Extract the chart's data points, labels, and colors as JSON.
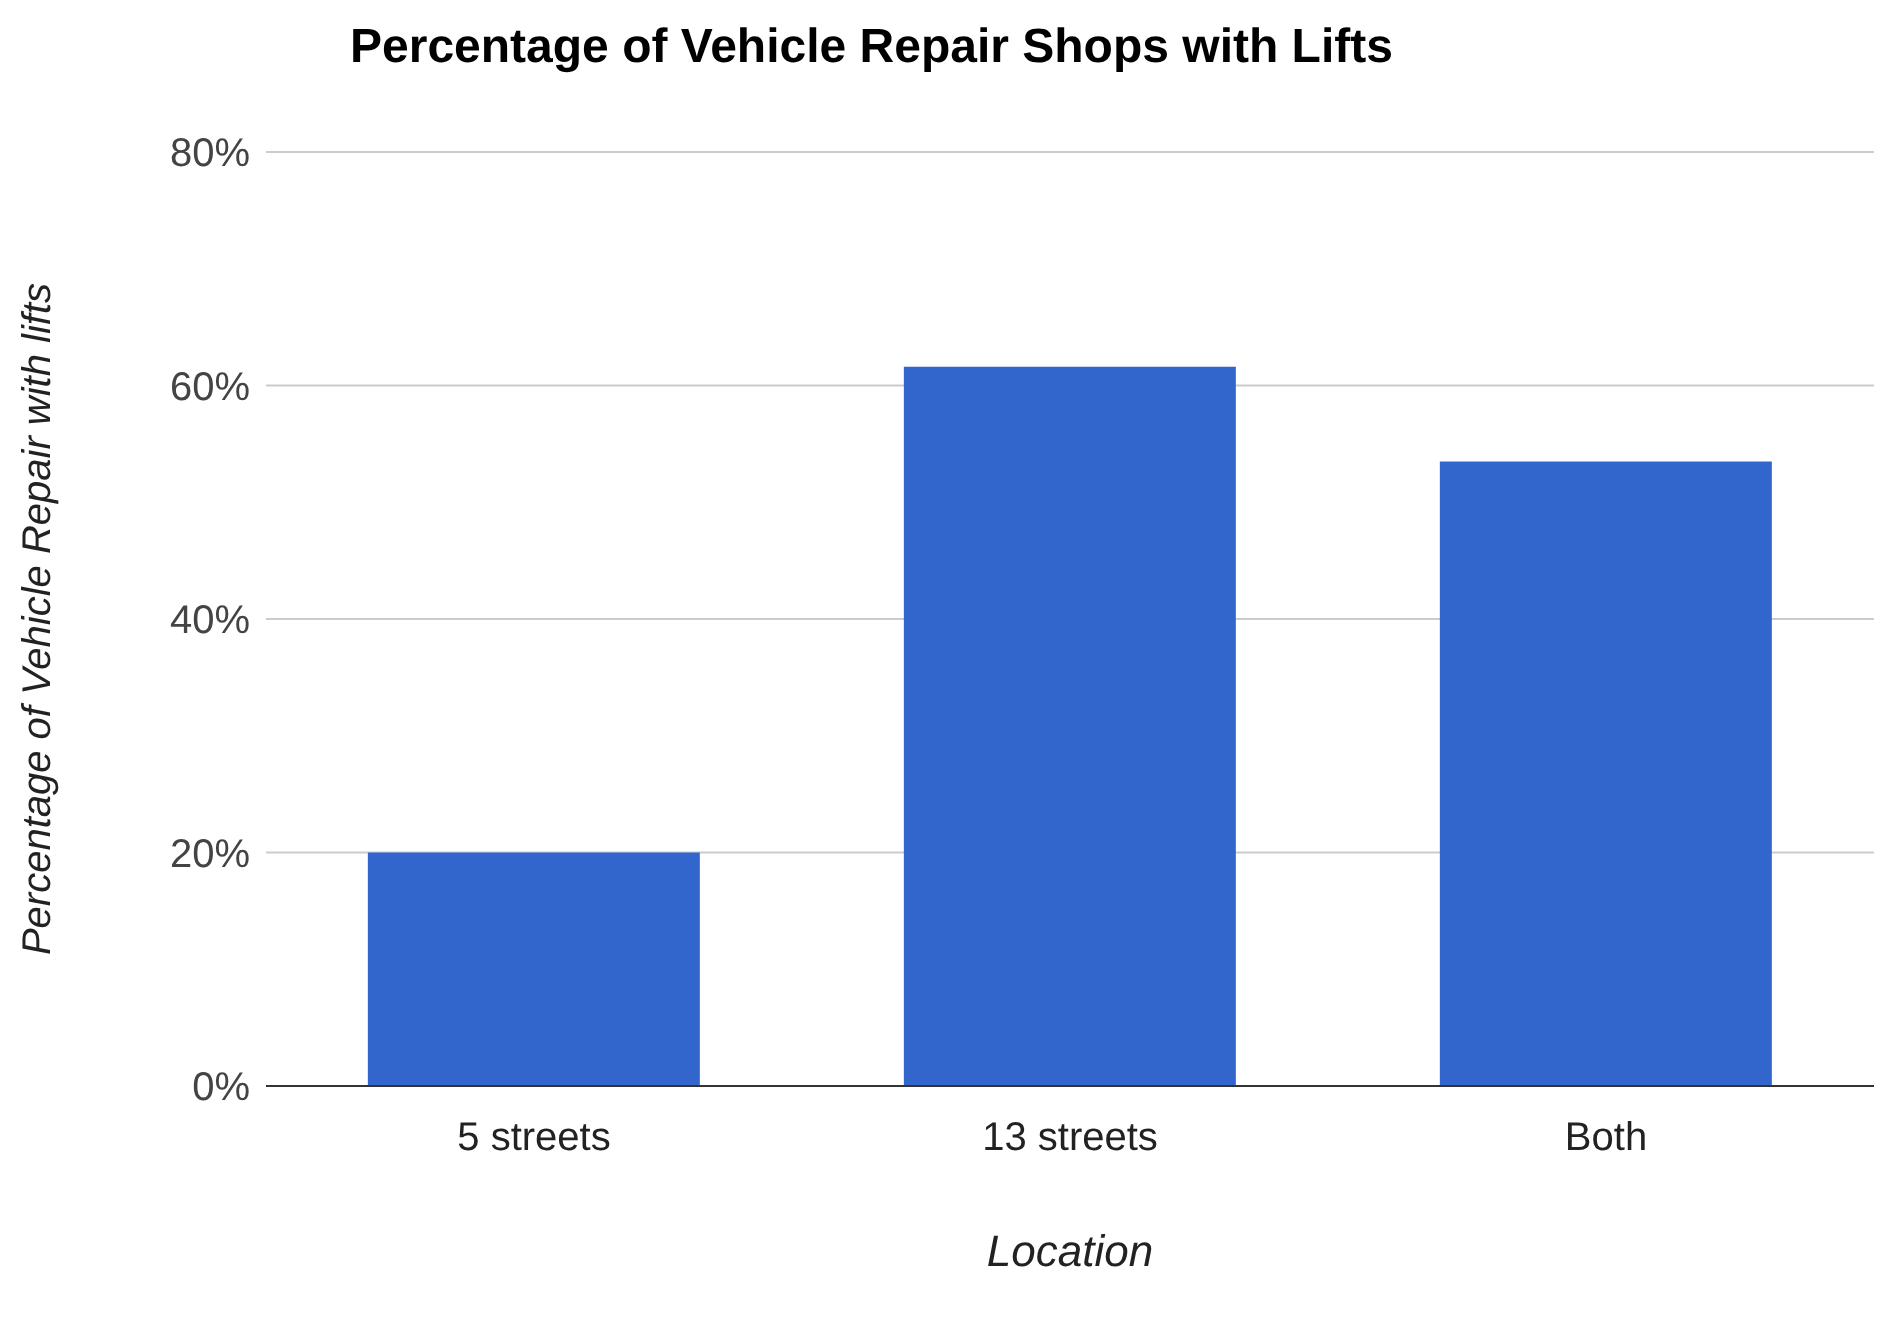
{
  "chart_data": {
    "type": "bar",
    "title": "Percentage of Vehicle Repair Shops with Lifts",
    "xlabel": "Location",
    "ylabel": "Percentage of Vehicle Repair with lifts",
    "categories": [
      "5 streets",
      "13 streets",
      "Both"
    ],
    "series": [
      {
        "color": "#3366cc",
        "values": [
          20,
          61.6,
          53.5
        ]
      }
    ],
    "ylim": [
      0,
      80
    ],
    "yticks": [
      {
        "value": 0,
        "label": "0%"
      },
      {
        "value": 20,
        "label": "20%"
      },
      {
        "value": 40,
        "label": "40%"
      },
      {
        "value": 60,
        "label": "60%"
      },
      {
        "value": 80,
        "label": "80%"
      }
    ],
    "grid": "y",
    "legend": false
  }
}
